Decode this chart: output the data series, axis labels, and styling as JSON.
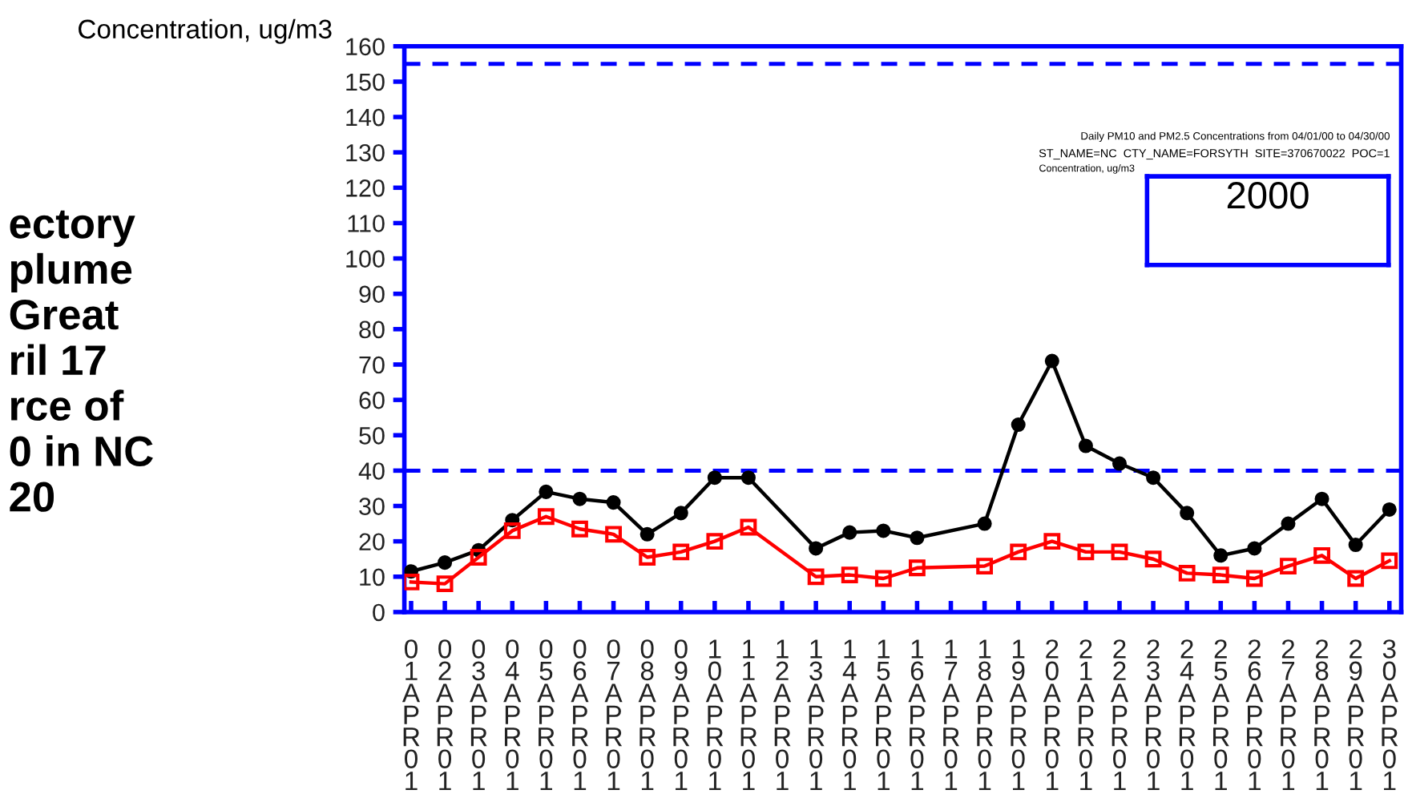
{
  "chart_data": {
    "type": "line",
    "ylabel": "Concentration, ug/m3",
    "categories": [
      "01APR01",
      "02APR01",
      "03APR01",
      "04APR01",
      "05APR01",
      "06APR01",
      "07APR01",
      "08APR01",
      "09APR01",
      "10APR01",
      "11APR01",
      "12APR01",
      "13APR01",
      "14APR01",
      "15APR01",
      "16APR01",
      "17APR01",
      "18APR01",
      "19APR01",
      "20APR01",
      "21APR01",
      "22APR01",
      "23APR01",
      "24APR01",
      "25APR01",
      "26APR01",
      "27APR01",
      "28APR01",
      "29APR01",
      "30APR01"
    ],
    "series": [
      {
        "color": "#000000",
        "marker": "circle",
        "values": [
          11.5,
          14,
          17.5,
          26,
          34,
          32,
          31,
          22,
          28,
          38,
          38,
          null,
          18,
          22.5,
          23,
          21,
          null,
          25,
          53,
          71,
          47,
          42,
          38,
          28,
          16,
          18,
          25,
          32,
          19,
          29
        ]
      },
      {
        "color": "#ff0000",
        "marker": "square",
        "values": [
          8.5,
          8,
          15.5,
          23,
          27,
          23.5,
          22,
          15.5,
          17,
          20,
          24,
          null,
          10,
          10.5,
          9.5,
          12.5,
          null,
          13,
          17,
          20,
          17,
          17,
          15,
          11,
          10.5,
          9.5,
          13,
          16,
          9.5,
          14.5
        ]
      }
    ],
    "ylim": [
      0,
      160
    ],
    "yticks": [
      0,
      10,
      20,
      30,
      40,
      50,
      60,
      70,
      80,
      90,
      100,
      110,
      120,
      130,
      140,
      150,
      160
    ],
    "ref_lines": [
      {
        "axis": "y",
        "value": 40,
        "color": "#0000ff",
        "line_style": "dashed"
      },
      {
        "axis": "y",
        "value": 155,
        "color": "#0000ff",
        "line_style": "dashed"
      }
    ],
    "grid": false,
    "legend": false,
    "annotations": [
      "ectory\nplume\nGreat\nril 17\nrce of\n0 in NC\n20",
      "Daily PM10 and PM2.5 Concentrations from 04/01/00 to 04/30/00",
      "ST_NAME=NC  CTY_NAME=FORSYTH  SITE=370670022  POC=1",
      "Concentration, ug/m3",
      "2000"
    ]
  }
}
